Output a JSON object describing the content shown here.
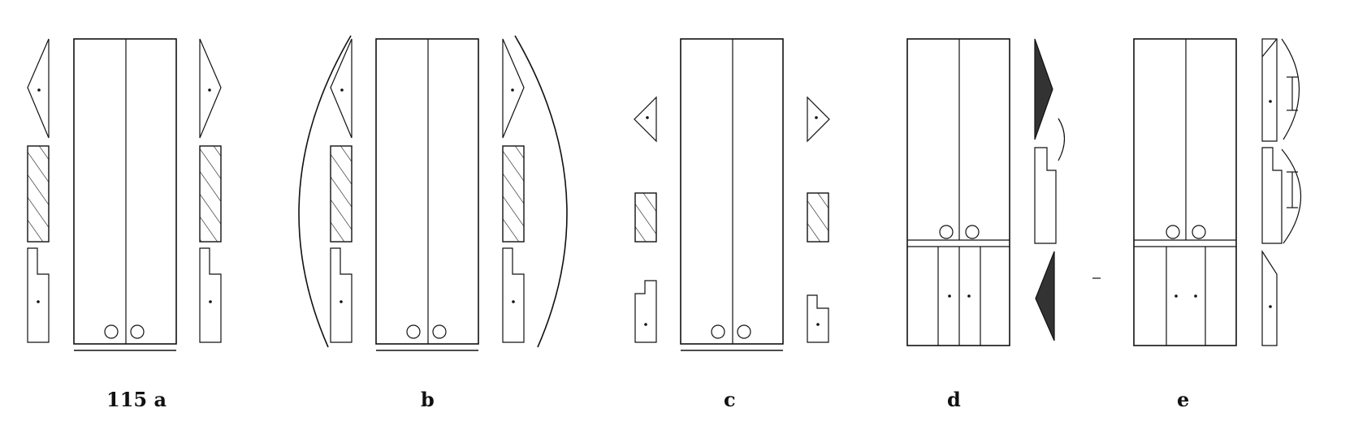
{
  "figure": {
    "labels": [
      "115 a",
      "b",
      "c",
      "d",
      "e"
    ]
  }
}
